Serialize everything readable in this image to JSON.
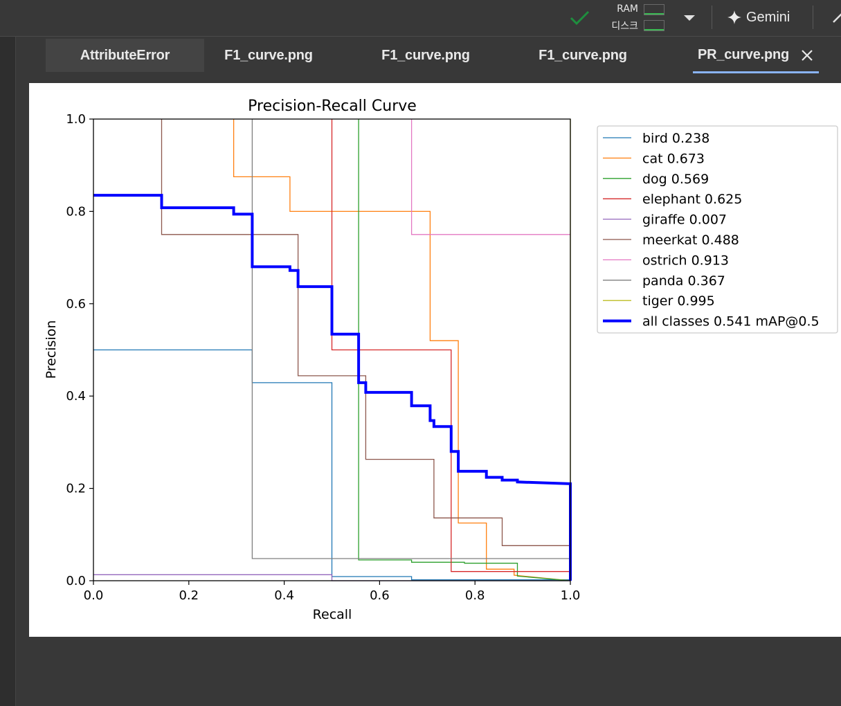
{
  "header": {
    "ram_label": "RAM",
    "disk_label": "디스크",
    "gemini_label": "Gemini",
    "status_color": "#1e8e3e"
  },
  "tabs": [
    {
      "label": "AttributeError"
    },
    {
      "label": "F1_curve.png"
    },
    {
      "label": "F1_curve.png"
    },
    {
      "label": "F1_curve.png"
    },
    {
      "label": "PR_curve.png",
      "active": true
    }
  ],
  "chart_data": {
    "type": "line",
    "title": "Precision-Recall Curve",
    "xlabel": "Recall",
    "ylabel": "Precision",
    "xlim": [
      0,
      1
    ],
    "ylim": [
      0,
      1
    ],
    "xticks": [
      "0.0",
      "0.2",
      "0.4",
      "0.6",
      "0.8",
      "1.0"
    ],
    "yticks": [
      "0.0",
      "0.2",
      "0.4",
      "0.6",
      "0.8",
      "1.0"
    ],
    "grid": false,
    "legend_position": "outside-right",
    "series": [
      {
        "name": "bird 0.238",
        "color": "#1f77b4",
        "width": 1.3,
        "x": [
          0,
          0.333,
          0.333,
          0.5,
          0.5,
          0.667,
          0.667,
          1.0
        ],
        "y": [
          0.5,
          0.5,
          0.429,
          0.429,
          0.009,
          0.009,
          0.002,
          0.002
        ]
      },
      {
        "name": "cat 0.673",
        "color": "#ff7f0e",
        "width": 1.3,
        "x": [
          0.294,
          0.294,
          0.412,
          0.412,
          0.706,
          0.706,
          0.765,
          0.765,
          0.824,
          0.824,
          0.882,
          0.882,
          1.0
        ],
        "y": [
          1.0,
          0.875,
          0.875,
          0.8,
          0.8,
          0.52,
          0.52,
          0.125,
          0.125,
          0.025,
          0.025,
          0.012,
          0.0
        ]
      },
      {
        "name": "dog 0.569",
        "color": "#2ca02c",
        "width": 1.3,
        "x": [
          0.556,
          0.556,
          0.667,
          0.667,
          0.778,
          0.778,
          0.889,
          0.889,
          1.0
        ],
        "y": [
          1.0,
          0.045,
          0.045,
          0.04,
          0.04,
          0.038,
          0.038,
          0.01,
          0.0
        ]
      },
      {
        "name": "elephant 0.625",
        "color": "#d62728",
        "width": 1.3,
        "x": [
          0.5,
          0.5,
          0.75,
          0.75,
          1.0
        ],
        "y": [
          1.0,
          0.5,
          0.5,
          0.02,
          0.02
        ]
      },
      {
        "name": "giraffe 0.007",
        "color": "#9467bd",
        "width": 1.3,
        "x": [
          0,
          0.5,
          0.5,
          1.0
        ],
        "y": [
          0.013,
          0.013,
          0.0,
          0.0
        ]
      },
      {
        "name": "meerkat 0.488",
        "color": "#8c564b",
        "width": 1.3,
        "x": [
          0.143,
          0.143,
          0.429,
          0.429,
          0.571,
          0.571,
          0.714,
          0.714,
          0.857,
          0.857,
          1.0
        ],
        "y": [
          1.0,
          0.75,
          0.75,
          0.444,
          0.444,
          0.263,
          0.263,
          0.136,
          0.136,
          0.076,
          0.076
        ]
      },
      {
        "name": "ostrich 0.913",
        "color": "#e377c2",
        "width": 1.3,
        "x": [
          0.667,
          0.667,
          1.0
        ],
        "y": [
          1.0,
          0.75,
          0.75
        ]
      },
      {
        "name": "panda 0.367",
        "color": "#7f7f7f",
        "width": 1.3,
        "x": [
          0.333,
          0.333,
          1.0
        ],
        "y": [
          1.0,
          0.048,
          0.048
        ]
      },
      {
        "name": "tiger 0.995",
        "color": "#bcbd22",
        "width": 1.3,
        "x": [
          1.0,
          1.0
        ],
        "y": [
          1.0,
          0.0
        ]
      },
      {
        "name": "all classes 0.541 mAP@0.5",
        "color": "#0000ff",
        "width": 4,
        "x": [
          0,
          0.143,
          0.143,
          0.294,
          0.294,
          0.333,
          0.333,
          0.412,
          0.412,
          0.429,
          0.429,
          0.5,
          0.5,
          0.556,
          0.556,
          0.571,
          0.571,
          0.667,
          0.667,
          0.706,
          0.706,
          0.714,
          0.714,
          0.75,
          0.75,
          0.765,
          0.765,
          0.824,
          0.824,
          0.857,
          0.857,
          0.889,
          0.889,
          1.0,
          1.0
        ],
        "y": [
          0.835,
          0.835,
          0.808,
          0.808,
          0.794,
          0.794,
          0.68,
          0.68,
          0.672,
          0.672,
          0.637,
          0.637,
          0.534,
          0.534,
          0.429,
          0.429,
          0.408,
          0.408,
          0.379,
          0.379,
          0.347,
          0.347,
          0.334,
          0.334,
          0.28,
          0.28,
          0.237,
          0.237,
          0.224,
          0.224,
          0.218,
          0.218,
          0.214,
          0.21,
          0.0
        ]
      }
    ]
  }
}
